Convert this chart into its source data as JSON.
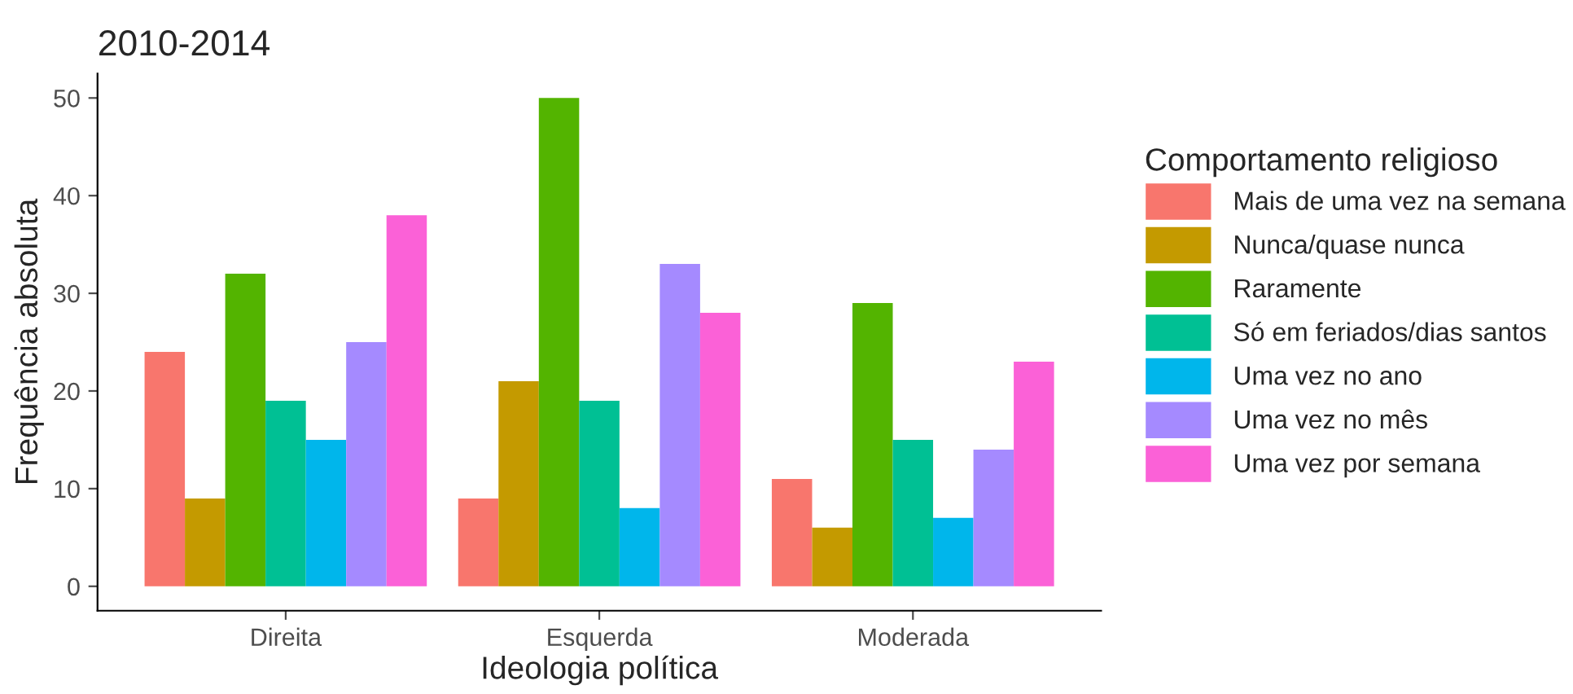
{
  "chart_data": {
    "type": "bar",
    "title": "2010-2014",
    "xlabel": "Ideologia política",
    "ylabel": "Frequência absoluta",
    "legend_title": "Comportamento religioso",
    "categories": [
      "Direita",
      "Esquerda",
      "Moderada"
    ],
    "series": [
      {
        "name": "Mais de uma vez na semana",
        "color": "#f8766d",
        "values": [
          24,
          9,
          11
        ]
      },
      {
        "name": "Nunca/quase nunca",
        "color": "#c49a00",
        "values": [
          9,
          21,
          6
        ]
      },
      {
        "name": "Raramente",
        "color": "#53b400",
        "values": [
          32,
          50,
          29
        ]
      },
      {
        "name": "Só em feriados/dias santos",
        "color": "#00c094",
        "values": [
          19,
          19,
          15
        ]
      },
      {
        "name": "Uma vez no ano",
        "color": "#00b6eb",
        "values": [
          15,
          8,
          7
        ]
      },
      {
        "name": "Uma vez no mês",
        "color": "#a58aff",
        "values": [
          25,
          33,
          14
        ]
      },
      {
        "name": "Uma vez por semana",
        "color": "#fb61d7",
        "values": [
          38,
          28,
          23
        ]
      }
    ],
    "ylim": [
      -2.5,
      52.5
    ],
    "yticks": [
      0,
      10,
      20,
      30,
      40,
      50
    ],
    "grid": false,
    "legend": "right"
  }
}
